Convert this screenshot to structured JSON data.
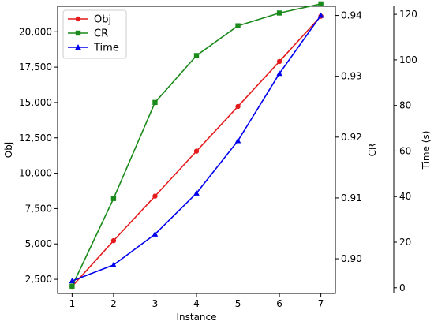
{
  "chart_data": {
    "type": "line",
    "xlabel": "Instance",
    "x": [
      1,
      2,
      3,
      4,
      5,
      6,
      7
    ],
    "xlim": [
      0.65,
      7.35
    ],
    "axes": {
      "left": {
        "label": "Obj",
        "ylim": [
          1500,
          21800
        ],
        "ticks": [
          2500,
          5000,
          7500,
          10000,
          12500,
          15000,
          17500,
          20000
        ],
        "tick_labels": [
          "2,500",
          "5,000",
          "7,500",
          "10,000",
          "12,500",
          "15,000",
          "17,500",
          "20,000"
        ]
      },
      "right": {
        "label": "CR",
        "ylim": [
          0.8943,
          0.9415
        ],
        "ticks": [
          0.9,
          0.91,
          0.92,
          0.93,
          0.94
        ],
        "tick_labels": [
          "0.90",
          "0.91",
          "0.92",
          "0.93",
          "0.94"
        ]
      },
      "far_right": {
        "label": "Time (s)",
        "ylim": [
          -2.5,
          123.5
        ],
        "ticks": [
          0,
          20,
          40,
          60,
          80,
          100,
          120
        ],
        "tick_labels": [
          "0",
          "20",
          "40",
          "60",
          "80",
          "100",
          "120"
        ]
      }
    },
    "series": [
      {
        "name": "Obj",
        "axis": "left",
        "color": "#e41a1c",
        "marker": "circle",
        "values": [
          2000,
          5230,
          8380,
          11560,
          14720,
          17900,
          21100
        ]
      },
      {
        "name": "CR",
        "axis": "right",
        "color": "#1a8a1a",
        "marker": "square",
        "values": [
          0.8955,
          0.9099,
          0.9257,
          0.9334,
          0.9383,
          0.9404,
          0.9419
        ]
      },
      {
        "name": "Time",
        "axis": "far_right",
        "color": "#0000ee",
        "marker": "triangle",
        "values": [
          3,
          10,
          23.5,
          41.5,
          64.5,
          94,
          119.5
        ]
      }
    ],
    "legend": "upper-left",
    "grid": false
  }
}
